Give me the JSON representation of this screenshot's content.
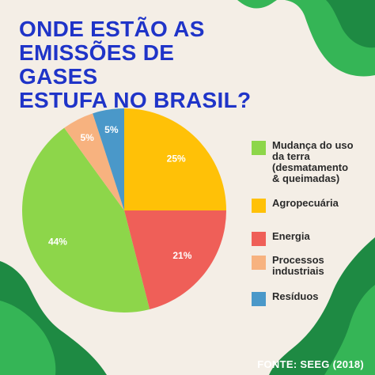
{
  "title": "ONDE ESTÃO AS\nEMISSÕES DE GASES\nESTUFA NO BRASIL?",
  "source": "FONTE:  SEEG (2018)",
  "chart_data": {
    "type": "pie",
    "title": "ONDE ESTÃO AS EMISSÕES DE GASES ESTUFA NO BRASIL?",
    "legend_position": "right",
    "slices": [
      {
        "label": "Agropecuária",
        "value": 25,
        "display": "25%",
        "color": "#ffc107"
      },
      {
        "label": "Energia",
        "value": 21,
        "display": "21%",
        "color": "#ef5f58"
      },
      {
        "label": "Mudança do uso\nda terra\n(desmatamento\n& queimadas)",
        "value": 44,
        "display": "44%",
        "color": "#8dd64a"
      },
      {
        "label": "Processos\nindustriais",
        "value": 5,
        "display": "5%",
        "color": "#f7b27f"
      },
      {
        "label": "Resíduos",
        "value": 5,
        "display": "5%",
        "color": "#4a98c9"
      }
    ],
    "legend_order": [
      2,
      0,
      1,
      3,
      4
    ]
  },
  "colors": {
    "background": "#f4eee6",
    "title": "#1f34c8",
    "leaf_dark": "#1e8a43",
    "leaf_light": "#35b556"
  }
}
